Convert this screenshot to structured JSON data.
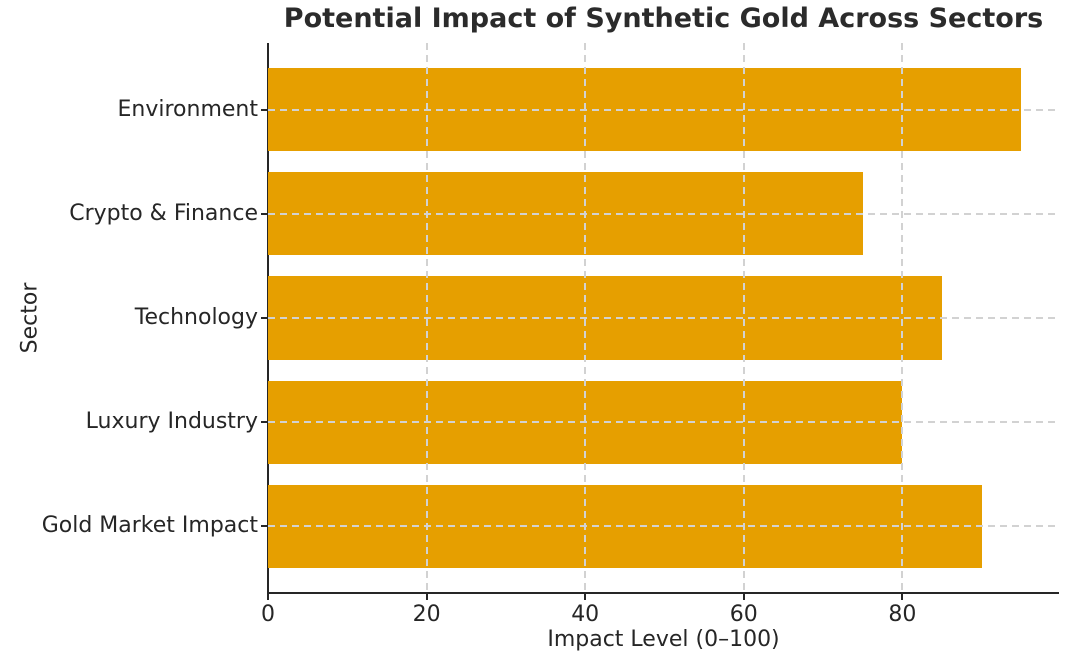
{
  "chart_data": {
    "type": "bar",
    "orientation": "horizontal",
    "title": "Potential Impact of Synthetic Gold Across Sectors",
    "xlabel": "Impact Level (0–100)",
    "ylabel": "Sector",
    "categories": [
      "Environment",
      "Crypto & Finance",
      "Technology",
      "Luxury Industry",
      "Gold Market Impact"
    ],
    "values": [
      95,
      75,
      85,
      80,
      90
    ],
    "xticks": [
      0,
      20,
      40,
      60,
      80
    ],
    "xlim": [
      0,
      99.75
    ],
    "ylim": [
      -0.64,
      4.64
    ],
    "bar_height_frac": 0.8,
    "bar_color": "#E69F00",
    "grid": {
      "visible": true,
      "style": "dashed",
      "axes": "both",
      "color": "#d2d2d2",
      "above_bars": true
    },
    "axis_color": "#262626",
    "text_color": "#262626",
    "title_color": "#2b2b2b",
    "background": "#ffffff",
    "legend": "none"
  }
}
